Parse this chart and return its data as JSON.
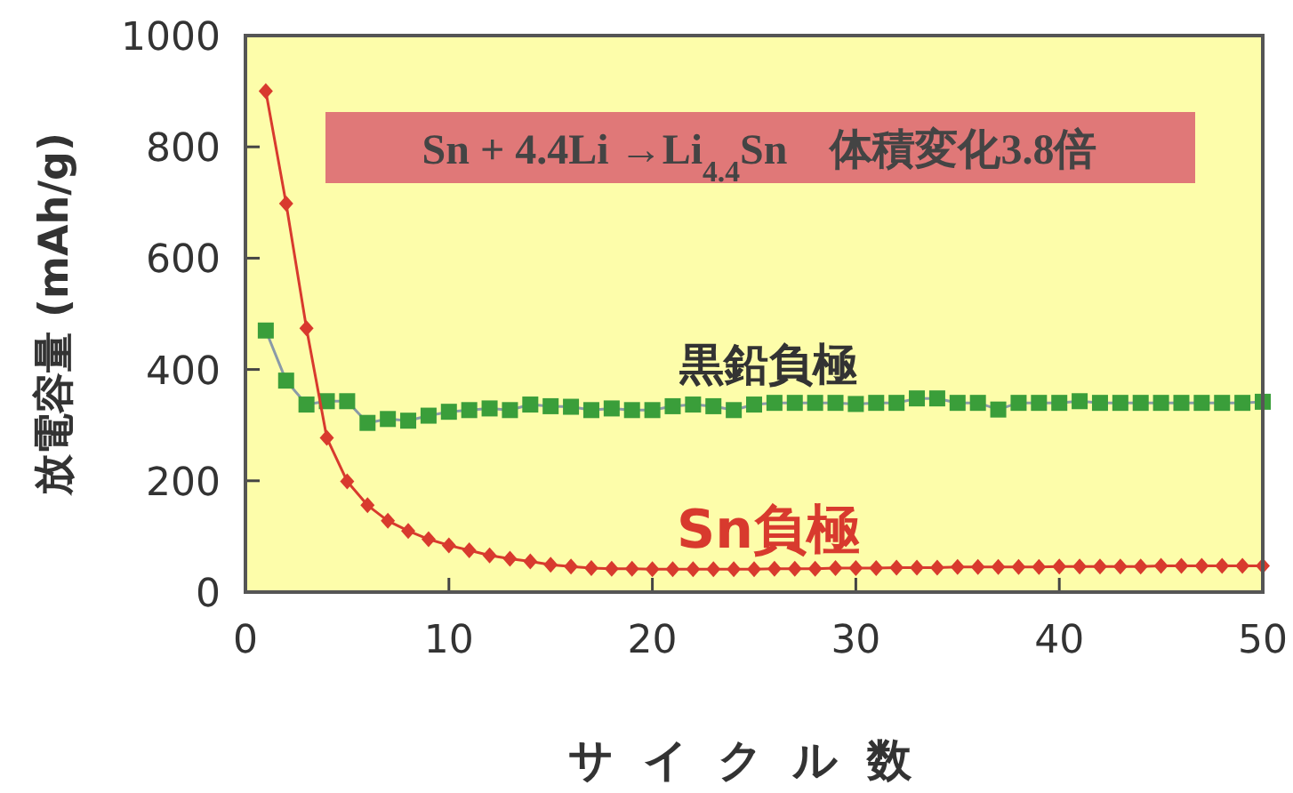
{
  "chart_data": {
    "type": "line",
    "xlabel": "サイクル数",
    "ylabel": "放電容量 (mAh/g)",
    "annotations": [
      "Sn + 4.4Li →Li$_{4.4}$Sn　体積変化3.8倍"
    ],
    "x": [
      1,
      2,
      3,
      4,
      5,
      6,
      7,
      8,
      9,
      10,
      11,
      12,
      13,
      14,
      15,
      16,
      17,
      18,
      19,
      20,
      21,
      22,
      23,
      24,
      25,
      26,
      27,
      28,
      29,
      30,
      31,
      32,
      33,
      34,
      35,
      36,
      37,
      38,
      39,
      40,
      41,
      42,
      43,
      44,
      45,
      46,
      47,
      48,
      49,
      50
    ],
    "series": [
      {
        "name": "黒鉛負極",
        "color": "#3a9e3a",
        "marker": "square",
        "values": [
          470,
          380,
          337,
          343,
          343,
          304,
          311,
          308,
          317,
          324,
          327,
          330,
          327,
          337,
          334,
          333,
          327,
          330,
          327,
          327,
          334,
          337,
          334,
          327,
          337,
          340,
          340,
          340,
          340,
          338,
          340,
          340,
          348,
          348,
          340,
          340,
          328,
          340,
          340,
          340,
          343,
          340,
          340,
          340,
          340,
          340,
          340,
          340,
          340,
          342
        ]
      },
      {
        "name": "Sn負極",
        "color": "#d83a2e",
        "marker": "diamond",
        "values": [
          900,
          698,
          474,
          277,
          199,
          156,
          128,
          110,
          95,
          84,
          75,
          66,
          60,
          55,
          49,
          46,
          43,
          42,
          42,
          41,
          41,
          41,
          41,
          41,
          41,
          42,
          42,
          42,
          43,
          43,
          43,
          44,
          44,
          44,
          45,
          45,
          45,
          45,
          45,
          46,
          46,
          46,
          46,
          46,
          47,
          47,
          47,
          47,
          47,
          47
        ]
      }
    ],
    "xlim": [
      0,
      50
    ],
    "xticks": [
      0,
      10,
      20,
      30,
      40,
      50
    ],
    "ylim": [
      0,
      1000
    ],
    "yticks": [
      0,
      200,
      400,
      600,
      800,
      1000
    ],
    "grid": false,
    "line_style": "solid"
  }
}
